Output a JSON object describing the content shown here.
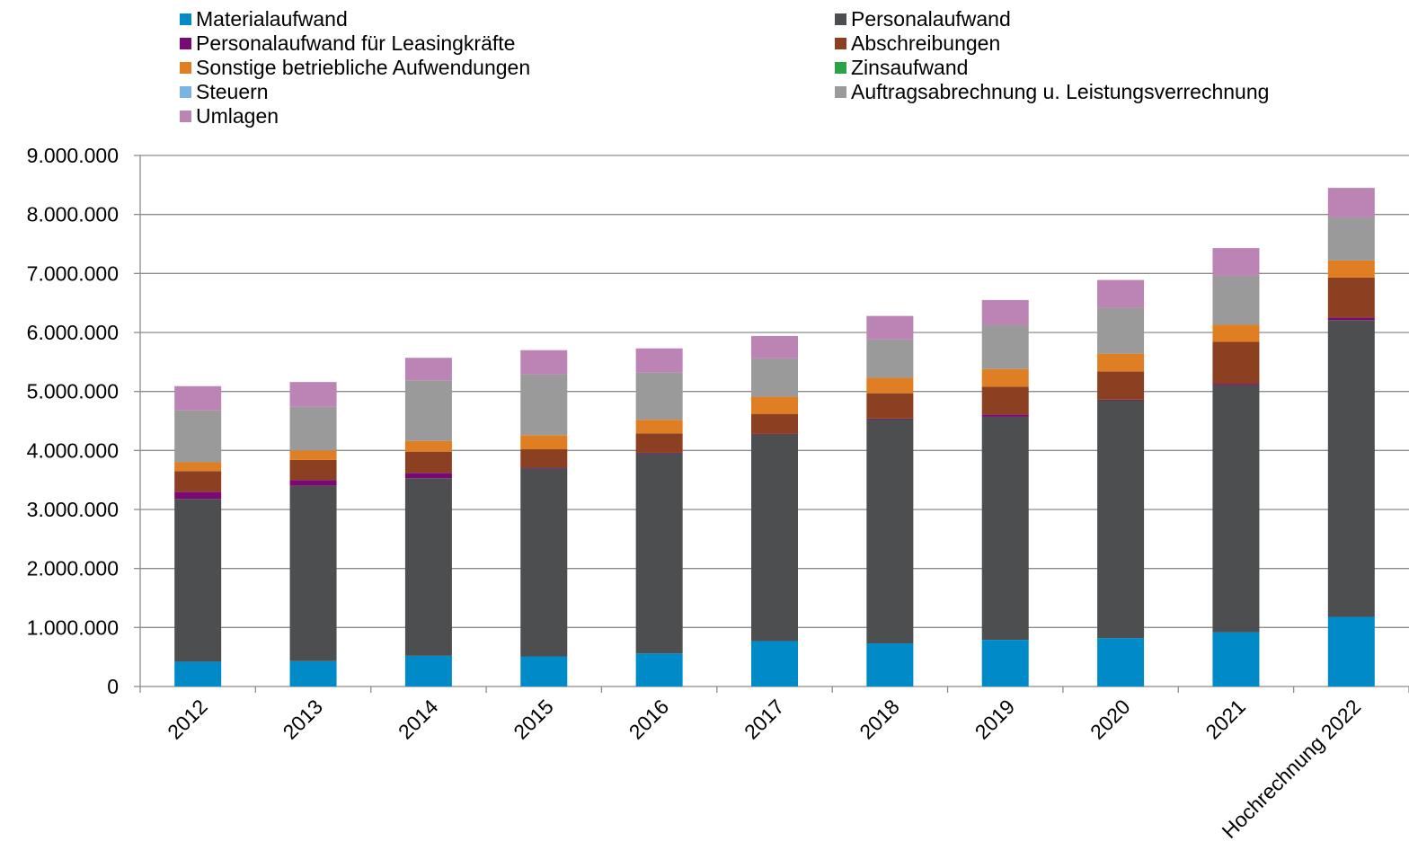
{
  "chart_data": {
    "type": "bar",
    "stacked": true,
    "categories": [
      "2012",
      "2013",
      "2014",
      "2015",
      "2016",
      "2017",
      "2018",
      "2019",
      "2020",
      "2021",
      "Hochrechnung 2022"
    ],
    "ylim": [
      0,
      9000000
    ],
    "y_ticks": [
      0,
      1000000,
      2000000,
      3000000,
      4000000,
      5000000,
      6000000,
      7000000,
      8000000,
      9000000
    ],
    "y_tick_labels": [
      "0",
      "1.000.000",
      "2.000.000",
      "3.000.000",
      "4.000.000",
      "5.000.000",
      "6.000.000",
      "7.000.000",
      "8.000.000",
      "9.000.000"
    ],
    "grid": true,
    "legend_position": "top",
    "series": [
      {
        "name": "Materialaufwand",
        "color": "#008bc8",
        "values": [
          420000,
          430000,
          520000,
          510000,
          560000,
          770000,
          730000,
          790000,
          820000,
          920000,
          1180000
        ]
      },
      {
        "name": "Personalaufwand",
        "color": "#4d4e50",
        "values": [
          2760000,
          2970000,
          3010000,
          3190000,
          3390000,
          3500000,
          3800000,
          3780000,
          4030000,
          4190000,
          5030000
        ]
      },
      {
        "name": "Personalaufwand für Leasingkräfte",
        "color": "#7a0a73",
        "values": [
          120000,
          100000,
          90000,
          10000,
          10000,
          10000,
          10000,
          40000,
          10000,
          20000,
          40000
        ]
      },
      {
        "name": "Abschreibungen",
        "color": "#8b4121",
        "values": [
          350000,
          340000,
          360000,
          310000,
          330000,
          340000,
          430000,
          470000,
          480000,
          710000,
          680000
        ]
      },
      {
        "name": "Sonstige betriebliche Aufwendungen",
        "color": "#e07e23",
        "values": [
          150000,
          160000,
          180000,
          240000,
          230000,
          290000,
          260000,
          300000,
          300000,
          290000,
          290000
        ]
      },
      {
        "name": "Zinsaufwand",
        "color": "#2aa345",
        "values": [
          0,
          0,
          0,
          0,
          0,
          0,
          0,
          0,
          0,
          0,
          0
        ]
      },
      {
        "name": "Steuern",
        "color": "#7ab4e3",
        "values": [
          0,
          0,
          0,
          0,
          0,
          0,
          0,
          0,
          0,
          0,
          0
        ]
      },
      {
        "name": "Auftragsabrechnung u. Leistungsverrechnung",
        "color": "#9a9a9a",
        "values": [
          880000,
          740000,
          1030000,
          1030000,
          800000,
          650000,
          650000,
          750000,
          780000,
          830000,
          730000
        ]
      },
      {
        "name": "Umlagen",
        "color": "#bc83b5",
        "values": [
          410000,
          420000,
          380000,
          410000,
          410000,
          380000,
          400000,
          420000,
          470000,
          470000,
          500000
        ]
      }
    ]
  }
}
